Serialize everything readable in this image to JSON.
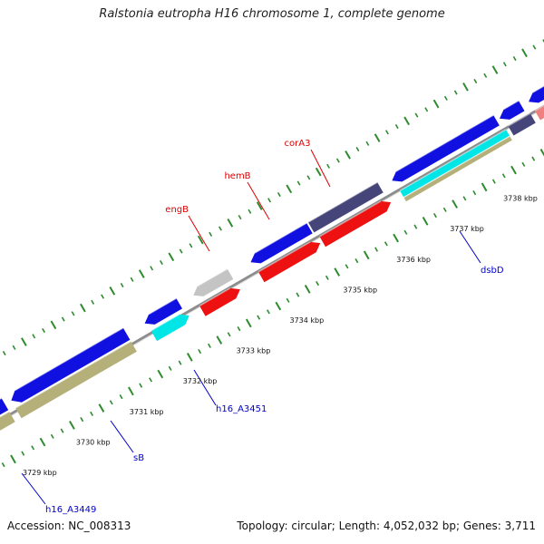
{
  "title": "Ralstonia eutropha H16 chromosome 1, complete genome",
  "accession": "Accession: NC_008313",
  "summary": "Topology: circular; Length: 4,052,032 bp; Genes: 3,711",
  "colors": {
    "backbone": "#8c8c8c",
    "tick": "#2e8b2e",
    "blue_gene": "#1010e0",
    "red_gene": "#ee1111",
    "slate_gene": "#45457a",
    "cyan_gene": "#00e5e5",
    "khaki_gene": "#b5b07a",
    "grey_gene": "#c4c4c4",
    "pink_gene": "#f08080",
    "label_red": "#dd0000",
    "label_blue": "#0000cc"
  },
  "scale": {
    "unit": "kbp",
    "ticks": [
      {
        "value": 3729,
        "label": "3729 kbp"
      },
      {
        "value": 3730,
        "label": "3730 kbp"
      },
      {
        "value": 3731,
        "label": "3731 kbp"
      },
      {
        "value": 3732,
        "label": "3732 kbp"
      },
      {
        "value": 3733,
        "label": "3733 kbp"
      },
      {
        "value": 3734,
        "label": "3734 kbp"
      },
      {
        "value": 3735,
        "label": "3735 kbp"
      },
      {
        "value": 3736,
        "label": "3736 kbp"
      },
      {
        "value": 3737,
        "label": "3737 kbp"
      },
      {
        "value": 3738,
        "label": "3738 kbp"
      }
    ]
  },
  "gene_labels": [
    {
      "name": "engB",
      "color": "red"
    },
    {
      "name": "hemB",
      "color": "red"
    },
    {
      "name": "corA3",
      "color": "red"
    },
    {
      "name": "dsbD",
      "color": "blue"
    },
    {
      "name": "h16_A3451",
      "color": "blue"
    },
    {
      "name": "sB",
      "color": "blue"
    },
    {
      "name": "h16_A3449",
      "color": "blue"
    }
  ]
}
